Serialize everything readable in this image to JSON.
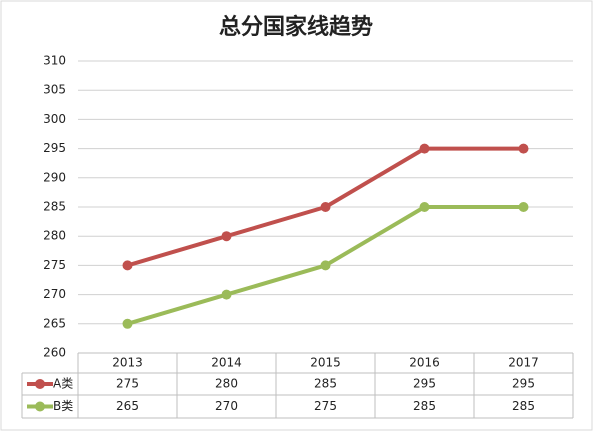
{
  "chart_data": {
    "type": "line",
    "title": "总分国家线趋势",
    "categories": [
      "2013",
      "2014",
      "2015",
      "2016",
      "2017"
    ],
    "series": [
      {
        "name": "A类",
        "color": "#c0504d",
        "values": [
          275,
          280,
          285,
          295,
          295
        ]
      },
      {
        "name": "B类",
        "color": "#9bbb59",
        "values": [
          265,
          270,
          275,
          285,
          285
        ]
      }
    ],
    "ylim": [
      260,
      310
    ],
    "yticks": [
      260,
      265,
      270,
      275,
      280,
      285,
      290,
      295,
      300,
      305,
      310
    ],
    "grid": true,
    "data_table": true
  }
}
